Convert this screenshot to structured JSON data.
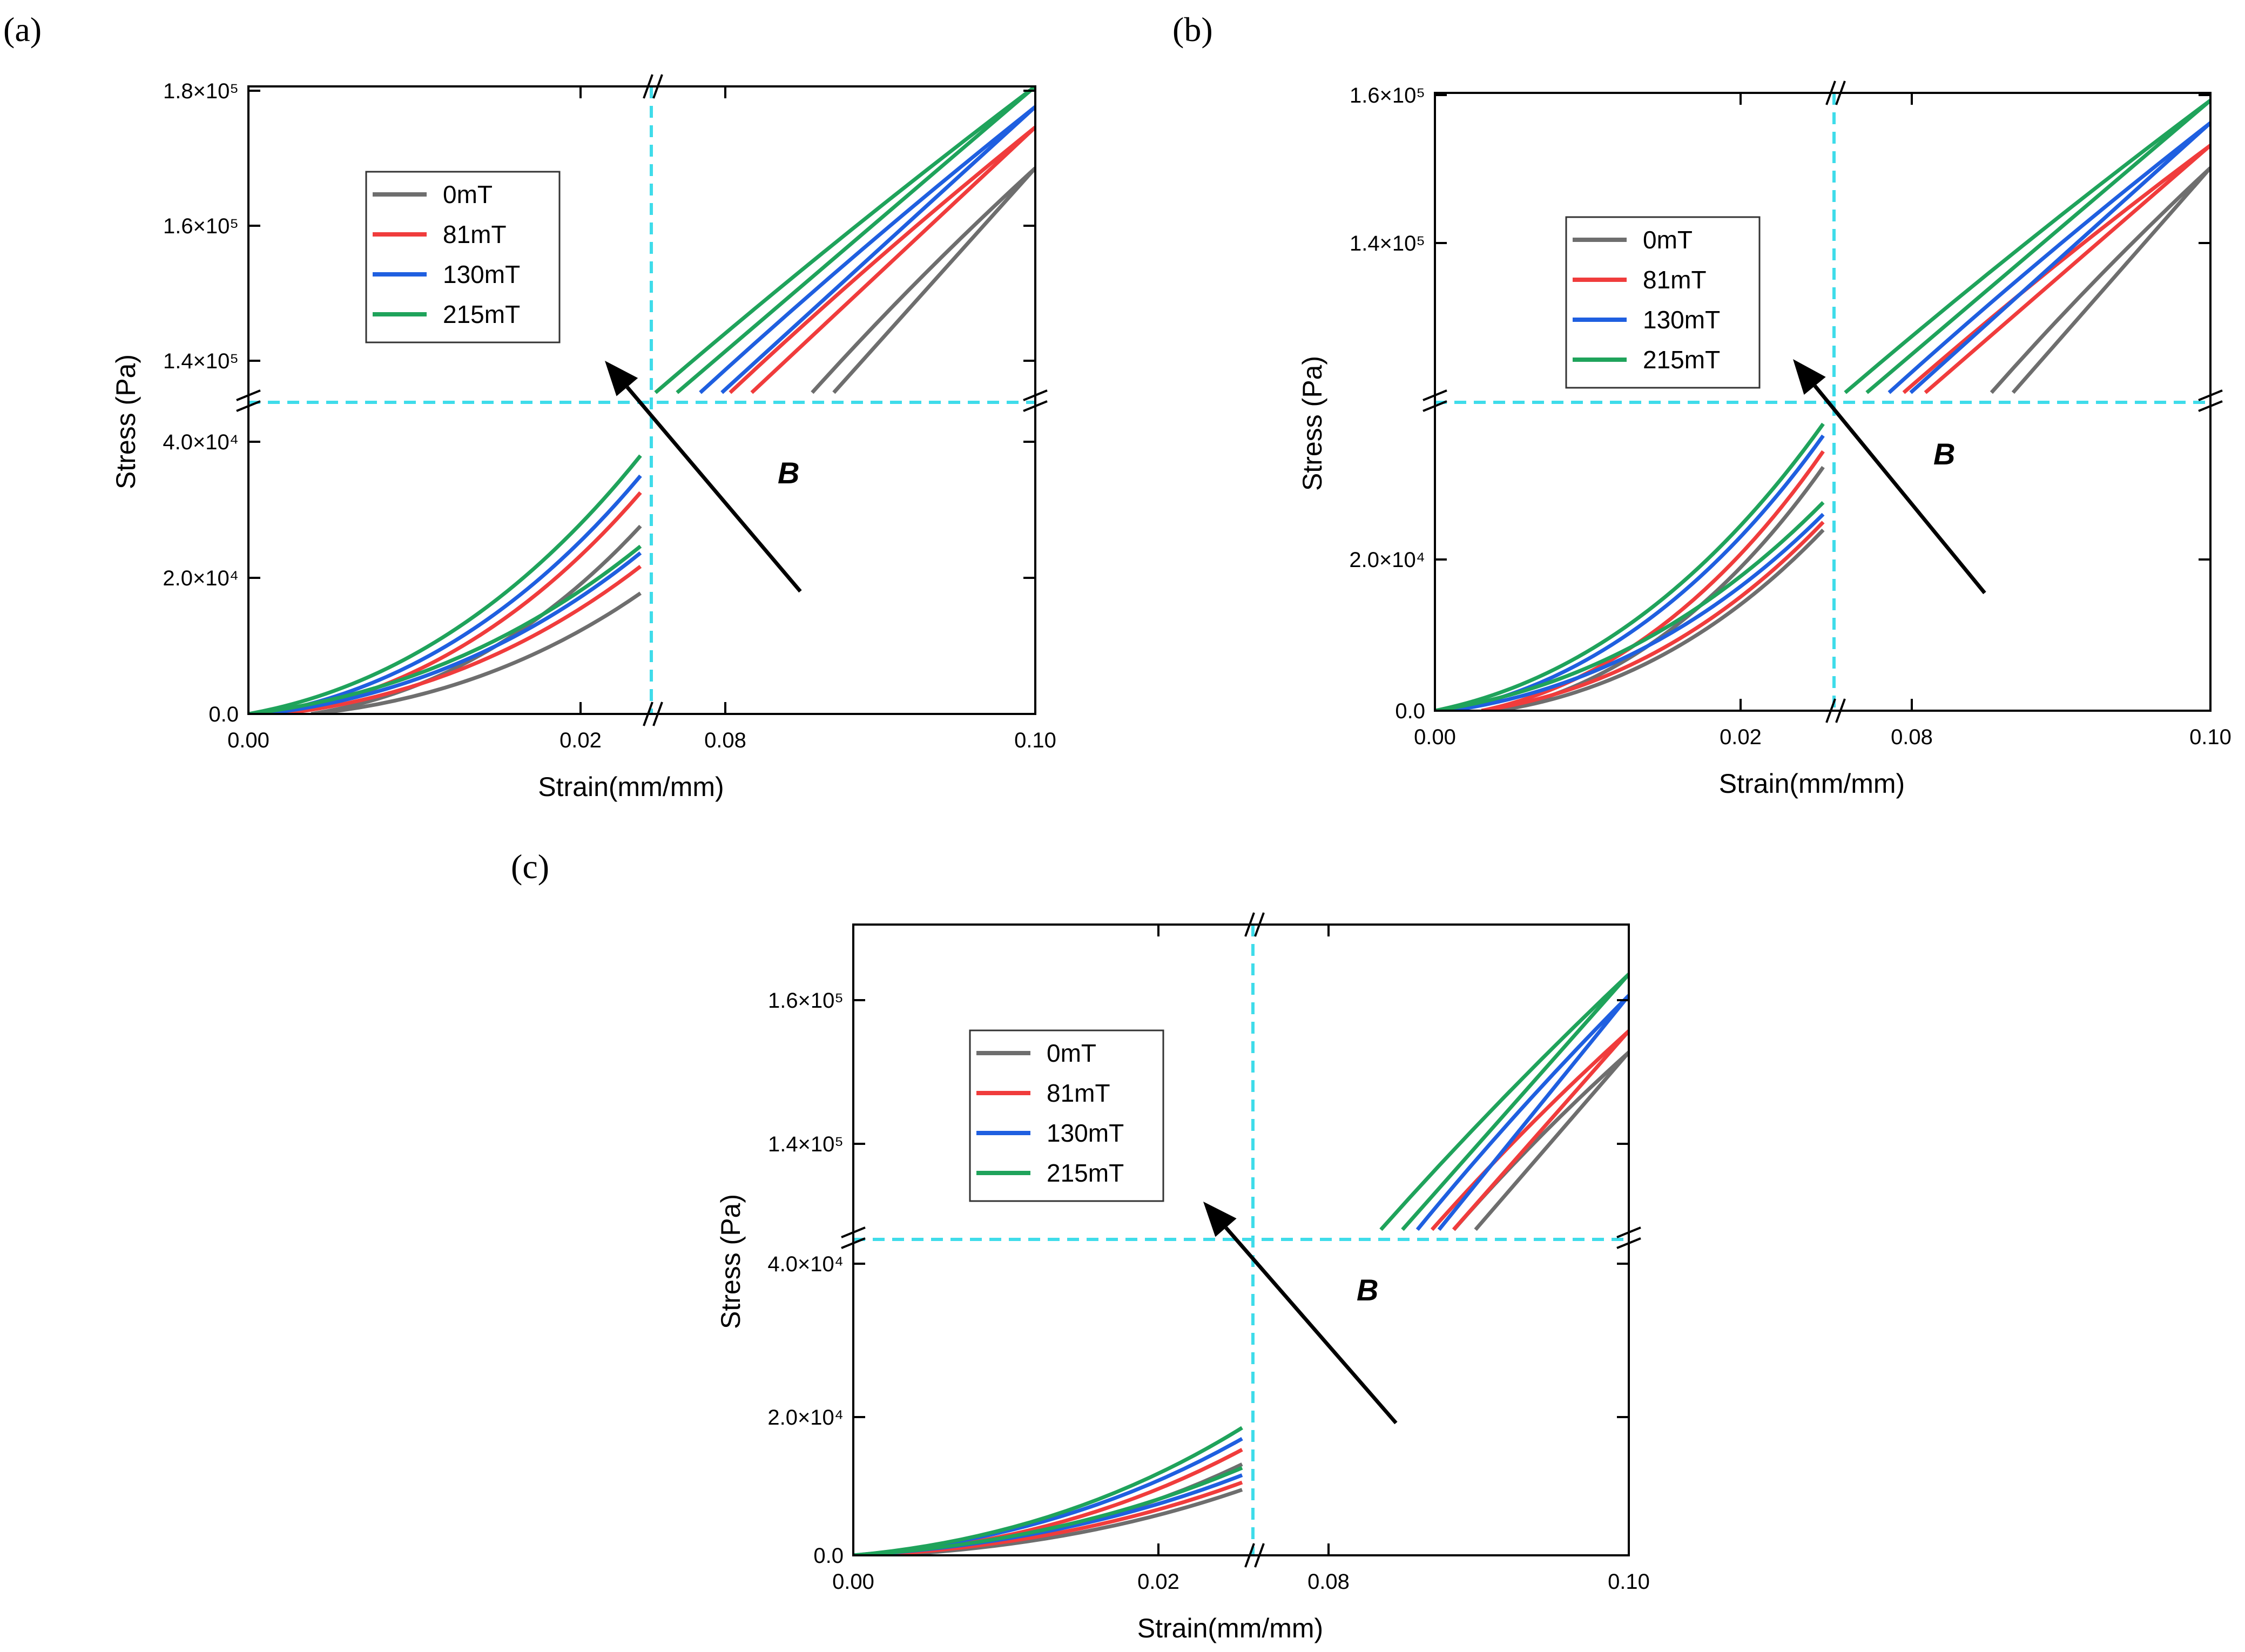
{
  "figure": {
    "field_symbol": "B",
    "legend": [
      "0mT",
      "81mT",
      "130mT",
      "215mT"
    ],
    "colors": {
      "0mT": "#6e6e6e",
      "81mT": "#f03c3c",
      "130mT": "#1f5fe0",
      "215mT": "#1fa35b",
      "break_line": "#3fdcea"
    }
  },
  "chart_data": [
    {
      "panel": "(a)",
      "type": "line",
      "title": "",
      "xlabel": "Strain(mm/mm)",
      "ylabel": "Stress (Pa)",
      "x_ticks": [
        "0.00",
        "0.02",
        "0.08",
        "0.10"
      ],
      "y_ticks": [
        "0.0",
        "2.0×10⁴",
        "4.0×10⁴",
        "1.4×10⁵",
        "1.6×10⁵",
        "1.8×10⁵"
      ],
      "x_segments": [
        [
          0,
          0.025
        ],
        [
          0.075,
          0.1
        ]
      ],
      "y_segments": [
        [
          0,
          45000
        ],
        [
          135000,
          180000
        ]
      ],
      "series": [
        {
          "name": "0mT",
          "low_start": [
            0.004,
            0
          ],
          "low_end": [
            [
              0.025,
              18000
            ],
            [
              0.025,
              28000
            ]
          ],
          "high_start": [
            0.0865,
            135000
          ],
          "high_end": [
            0.1,
            168000
          ]
        },
        {
          "name": "81mT",
          "low_start": [
            0.002,
            0
          ],
          "low_end": [
            [
              0.025,
              22000
            ],
            [
              0.025,
              33000
            ]
          ],
          "high_start": [
            0.081,
            135000
          ],
          "high_end": [
            0.1,
            174000
          ]
        },
        {
          "name": "130mT",
          "low_start": [
            0.001,
            0
          ],
          "low_end": [
            [
              0.025,
              24000
            ],
            [
              0.025,
              35500
            ]
          ],
          "high_start": [
            0.079,
            135000
          ],
          "high_end": [
            0.1,
            177000
          ]
        },
        {
          "name": "215mT",
          "low_start": [
            0.0,
            0
          ],
          "low_end": [
            [
              0.025,
              25000
            ],
            [
              0.025,
              38500
            ]
          ],
          "high_start": [
            0.076,
            135000
          ],
          "high_end": [
            0.1,
            180000
          ]
        }
      ]
    },
    {
      "panel": "(b)",
      "type": "line",
      "title": "",
      "xlabel": "Strain(mm/mm)",
      "ylabel": "Stress (Pa)",
      "x_ticks": [
        "0.00",
        "0.02",
        "0.08",
        "0.10"
      ],
      "y_ticks": [
        "0.0",
        "2.0×10⁴",
        "1.4×10⁵",
        "1.6×10⁵"
      ],
      "x_segments": [
        [
          0,
          0.025
        ],
        [
          0.075,
          0.1
        ]
      ],
      "y_segments": [
        [
          0,
          38000
        ],
        [
          120000,
          160000
        ]
      ],
      "series": [
        {
          "name": "0mT",
          "low_start": [
            0.004,
            0
          ],
          "low_end": [
            [
              0.025,
              23000
            ],
            [
              0.025,
              31000
            ]
          ],
          "high_start": [
            0.0865,
            120000
          ],
          "high_end": [
            0.1,
            150000
          ]
        },
        {
          "name": "81mT",
          "low_start": [
            0.003,
            0
          ],
          "low_end": [
            [
              0.025,
              24000
            ],
            [
              0.025,
              33000
            ]
          ],
          "high_start": [
            0.0805,
            120000
          ],
          "high_end": [
            0.1,
            153000
          ]
        },
        {
          "name": "130mT",
          "low_start": [
            0.001,
            0
          ],
          "low_end": [
            [
              0.025,
              25000
            ],
            [
              0.025,
              35000
            ]
          ],
          "high_start": [
            0.0795,
            120000
          ],
          "high_end": [
            0.1,
            156000
          ]
        },
        {
          "name": "215mT",
          "low_start": [
            0.0,
            0
          ],
          "low_end": [
            [
              0.025,
              26500
            ],
            [
              0.025,
              36500
            ]
          ],
          "high_start": [
            0.0765,
            120000
          ],
          "high_end": [
            0.1,
            159000
          ]
        }
      ]
    },
    {
      "panel": "(c)",
      "type": "line",
      "title": "",
      "xlabel": "Strain(mm/mm)",
      "ylabel": "Stress (Pa)",
      "x_ticks": [
        "0.00",
        "0.02",
        "0.08",
        "0.10"
      ],
      "y_ticks": [
        "0.0",
        "2.0×10⁴",
        "4.0×10⁴",
        "1.4×10⁵",
        "1.6×10⁵"
      ],
      "x_segments": [
        [
          0,
          0.025
        ],
        [
          0.075,
          0.1
        ]
      ],
      "y_segments": [
        [
          0,
          42000
        ],
        [
          127000,
          170000
        ]
      ],
      "series": [
        {
          "name": "0mT",
          "low_start": [
            0.002,
            0
          ],
          "low_end": [
            [
              0.025,
              9000
            ],
            [
              0.025,
              12500
            ]
          ],
          "high_start": [
            0.0895,
            127000
          ],
          "high_end": [
            0.1,
            152000
          ]
        },
        {
          "name": "81mT",
          "low_start": [
            0.001,
            0
          ],
          "low_end": [
            [
              0.025,
              10000
            ],
            [
              0.025,
              14500
            ]
          ],
          "high_start": [
            0.088,
            127000
          ],
          "high_end": [
            0.1,
            155000
          ]
        },
        {
          "name": "130mT",
          "low_start": [
            0.0,
            0
          ],
          "low_end": [
            [
              0.025,
              11000
            ],
            [
              0.025,
              16000
            ]
          ],
          "high_start": [
            0.087,
            127000
          ],
          "high_end": [
            0.1,
            160000
          ]
        },
        {
          "name": "215mT",
          "low_start": [
            0.0,
            0
          ],
          "low_end": [
            [
              0.025,
              12000
            ],
            [
              0.025,
              17500
            ]
          ],
          "high_start": [
            0.0845,
            127000
          ],
          "high_end": [
            0.1,
            163000
          ]
        }
      ]
    }
  ]
}
